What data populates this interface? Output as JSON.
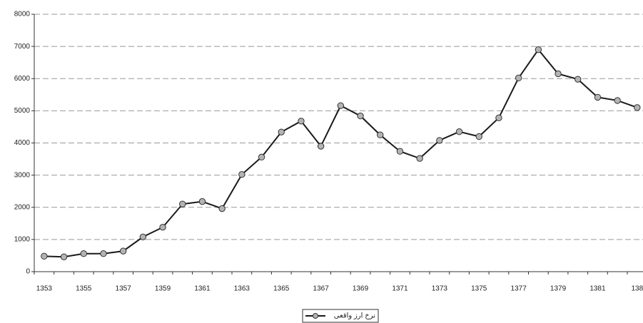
{
  "chart_data": {
    "type": "line",
    "categories": [
      "1353",
      null,
      "1355",
      null,
      "1357",
      null,
      "1359",
      null,
      "1361",
      null,
      "1363",
      null,
      "1365",
      null,
      "1367",
      null,
      "1369",
      null,
      "1371",
      null,
      "1373",
      null,
      "1375",
      null,
      "1377",
      null,
      "1379",
      null,
      "1381",
      null,
      "138"
    ],
    "series": [
      {
        "name": "نرخ ارز واقعی",
        "color": "#1a1a1a",
        "marker_color": "#b4b4b4",
        "values": [
          480,
          460,
          560,
          560,
          640,
          1080,
          1380,
          2100,
          2180,
          1960,
          3020,
          3560,
          4340,
          4680,
          3900,
          5160,
          4840,
          4250,
          3740,
          3520,
          4080,
          4350,
          4200,
          4780,
          6020,
          6900,
          6150,
          5980,
          5420,
          5320,
          5100
        ]
      }
    ],
    "ylim": [
      0,
      8000
    ],
    "yticks": [
      0,
      1000,
      2000,
      3000,
      4000,
      5000,
      6000,
      7000,
      8000
    ],
    "grid": true,
    "legend": "bottom"
  }
}
